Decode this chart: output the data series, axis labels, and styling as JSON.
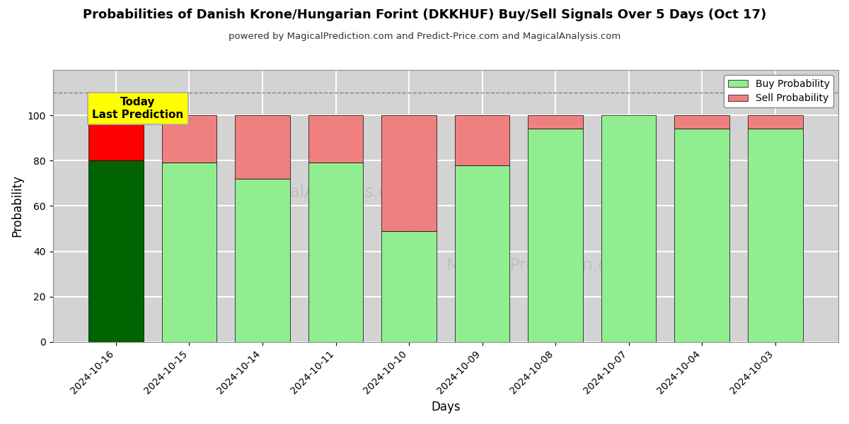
{
  "title": "Probabilities of Danish Krone/Hungarian Forint (DKKHUF) Buy/Sell Signals Over 5 Days (Oct 17)",
  "subtitle": "powered by MagicalPrediction.com and Predict-Price.com and MagicalAnalysis.com",
  "xlabel": "Days",
  "ylabel": "Probability",
  "categories": [
    "2024-10-16",
    "2024-10-15",
    "2024-10-14",
    "2024-10-11",
    "2024-10-10",
    "2024-10-09",
    "2024-10-08",
    "2024-10-07",
    "2024-10-04",
    "2024-10-03"
  ],
  "buy_values": [
    80,
    79,
    72,
    79,
    49,
    78,
    94,
    100,
    94,
    94
  ],
  "sell_values": [
    20,
    21,
    28,
    21,
    51,
    22,
    6,
    0,
    6,
    6
  ],
  "today_bar_buy_color": "#006400",
  "today_bar_sell_color": "#FF0000",
  "normal_bar_buy_color": "#90EE90",
  "normal_bar_sell_color": "#F08080",
  "today_box_color": "#FFFF00",
  "today_label": "Today\nLast Prediction",
  "dashed_line_y": 110,
  "ylim": [
    0,
    120
  ],
  "yticks": [
    0,
    20,
    40,
    60,
    80,
    100
  ],
  "legend_buy_label": "Buy Probability",
  "legend_sell_label": "Sell Probability",
  "bar_edge_color": "#000000",
  "bar_linewidth": 0.5,
  "grid_color": "#FFFFFF",
  "bg_color": "#D3D3D3",
  "watermark_color": "#BEBEBE",
  "figsize": [
    12.0,
    6.0
  ],
  "dpi": 100
}
